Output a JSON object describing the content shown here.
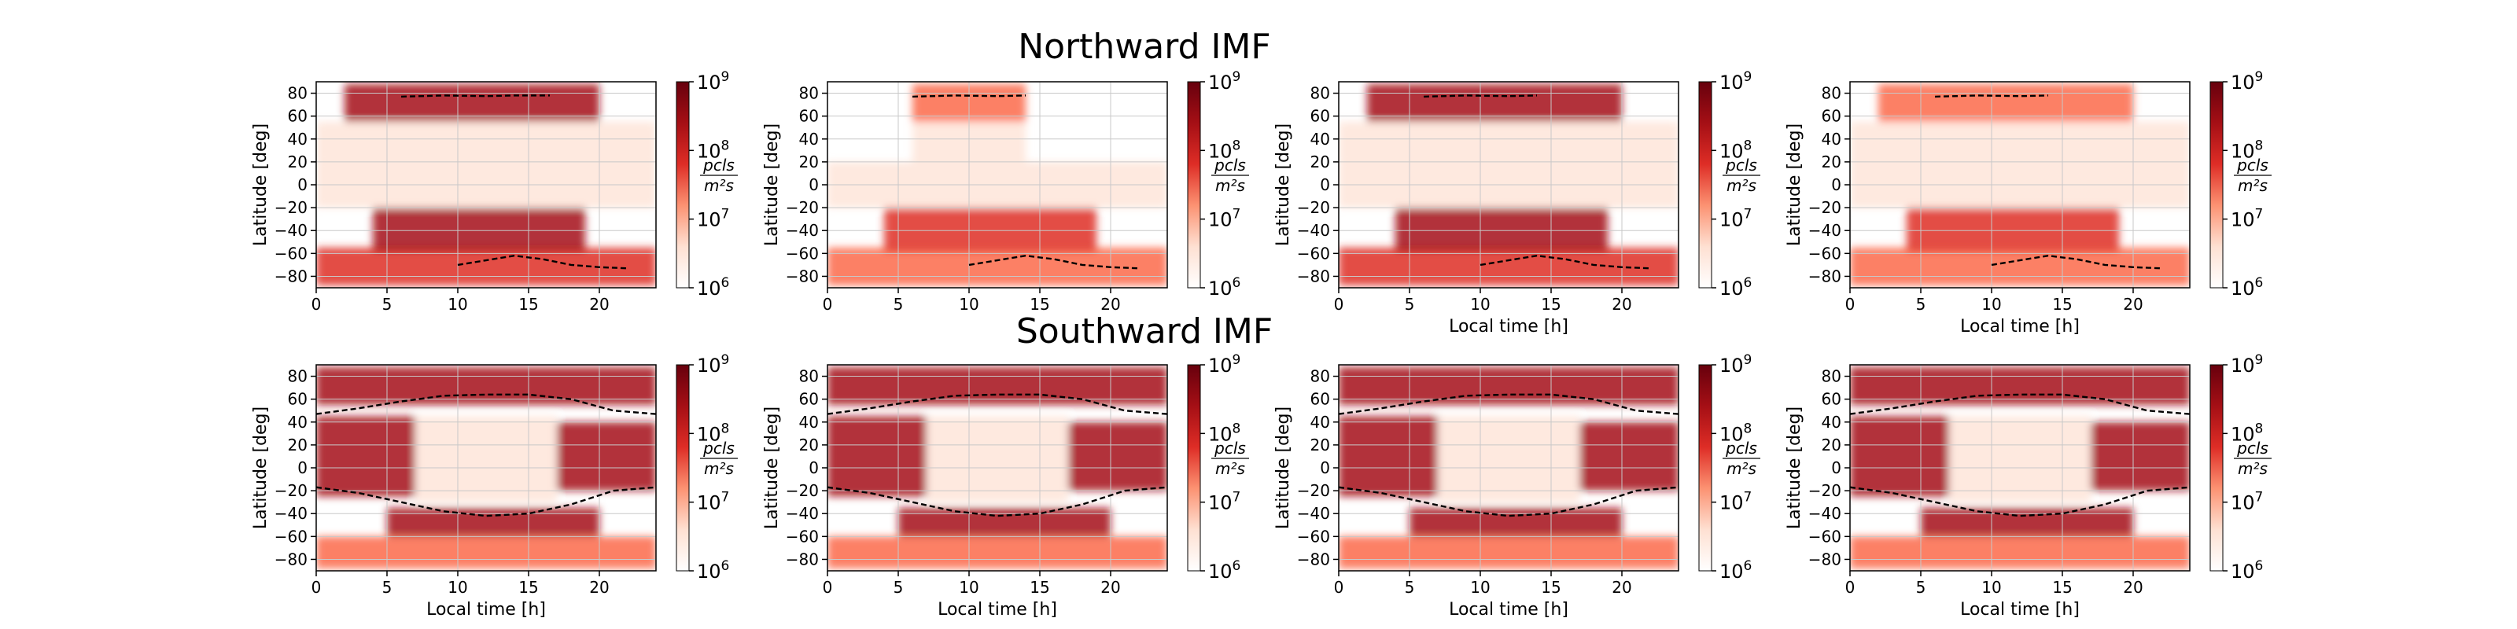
{
  "figure": {
    "rows": [
      {
        "title": "Northward IMF"
      },
      {
        "title": "Southward IMF"
      }
    ],
    "colorbar": {
      "label_numerator": "pcls",
      "label_denominator": "m²s",
      "ticks": [
        {
          "base": "10",
          "exp": "9"
        },
        {
          "base": "10",
          "exp": "8"
        },
        {
          "base": "10",
          "exp": "7"
        },
        {
          "base": "10",
          "exp": "6"
        }
      ],
      "colors": [
        "#ffffff",
        "#fee0d2",
        "#fc9272",
        "#de2d26",
        "#a50f15",
        "#67000d"
      ]
    },
    "accent_color": "#e03a2f"
  },
  "chart_data": [
    {
      "type": "heatmap",
      "row": "Northward IMF",
      "panel": 1,
      "xlabel": "",
      "ylabel": "Latitude [deg]",
      "xlim": [
        0,
        24
      ],
      "ylim": [
        -90,
        90
      ],
      "xticks": [
        "0",
        "5",
        "10",
        "15",
        "20"
      ],
      "yticks": [
        "80",
        "60",
        "40",
        "20",
        "0",
        "-20",
        "-40",
        "-60",
        "-80"
      ],
      "colorscale": "log",
      "clim": [
        1000000.0,
        1000000000.0
      ],
      "grid": true,
      "boundary_lines": [
        {
          "x": [
            6,
            9,
            12,
            14,
            16.5
          ],
          "y": [
            77,
            78,
            77.5,
            78,
            78
          ]
        },
        {
          "x": [
            10,
            12,
            14,
            16,
            18,
            20,
            22
          ],
          "y": [
            -70,
            -66,
            -62,
            -65,
            -70,
            -72,
            -73
          ]
        }
      ]
    },
    {
      "type": "heatmap",
      "row": "Northward IMF",
      "panel": 2,
      "xlabel": "",
      "ylabel": "Latitude [deg]",
      "xlim": [
        0,
        24
      ],
      "ylim": [
        -90,
        90
      ],
      "xticks": [
        "0",
        "5",
        "10",
        "15",
        "20"
      ],
      "yticks": [
        "80",
        "60",
        "40",
        "20",
        "0",
        "-20",
        "-40",
        "-60",
        "-80"
      ],
      "colorscale": "log",
      "clim": [
        1000000.0,
        1000000000.0
      ],
      "grid": true,
      "boundary_lines": [
        {
          "x": [
            6,
            9,
            12,
            14
          ],
          "y": [
            77,
            78,
            77.5,
            78
          ]
        },
        {
          "x": [
            10,
            12,
            14,
            16,
            18,
            20,
            22
          ],
          "y": [
            -70,
            -66,
            -62,
            -65,
            -70,
            -72,
            -73
          ]
        }
      ]
    },
    {
      "type": "heatmap",
      "row": "Northward IMF",
      "panel": 3,
      "xlabel": "Local time [h]",
      "ylabel": "Latitude [deg]",
      "xlim": [
        0,
        24
      ],
      "ylim": [
        -90,
        90
      ],
      "xticks": [
        "0",
        "5",
        "10",
        "15",
        "20"
      ],
      "yticks": [
        "80",
        "60",
        "40",
        "20",
        "0",
        "-20",
        "-40",
        "-60",
        "-80"
      ],
      "colorscale": "log",
      "clim": [
        1000000.0,
        1000000000.0
      ],
      "grid": true,
      "boundary_lines": [
        {
          "x": [
            6,
            9,
            12,
            14
          ],
          "y": [
            77,
            78,
            77.5,
            78
          ]
        },
        {
          "x": [
            10,
            12,
            14,
            16,
            18,
            20,
            22
          ],
          "y": [
            -70,
            -66,
            -62,
            -65,
            -70,
            -72,
            -73
          ]
        }
      ]
    },
    {
      "type": "heatmap",
      "row": "Northward IMF",
      "panel": 4,
      "xlabel": "Local time [h]",
      "ylabel": "Latitude [deg]",
      "xlim": [
        0,
        24
      ],
      "ylim": [
        -90,
        90
      ],
      "xticks": [
        "0",
        "5",
        "10",
        "15",
        "20"
      ],
      "yticks": [
        "80",
        "60",
        "40",
        "20",
        "0",
        "-20",
        "-40",
        "-60",
        "-80"
      ],
      "colorscale": "log",
      "clim": [
        1000000.0,
        1000000000.0
      ],
      "grid": true,
      "boundary_lines": [
        {
          "x": [
            6,
            9,
            12,
            14
          ],
          "y": [
            77,
            78,
            77.5,
            78
          ]
        },
        {
          "x": [
            10,
            12,
            14,
            16,
            18,
            20,
            22
          ],
          "y": [
            -70,
            -66,
            -62,
            -65,
            -70,
            -72,
            -73
          ]
        }
      ]
    },
    {
      "type": "heatmap",
      "row": "Southward IMF",
      "panel": 1,
      "xlabel": "Local time [h]",
      "ylabel": "Latitude [deg]",
      "xlim": [
        0,
        24
      ],
      "ylim": [
        -90,
        90
      ],
      "xticks": [
        "0",
        "5",
        "10",
        "15",
        "20"
      ],
      "yticks": [
        "80",
        "60",
        "40",
        "20",
        "0",
        "-20",
        "-40",
        "-60",
        "-80"
      ],
      "colorscale": "log",
      "clim": [
        1000000.0,
        1000000000.0
      ],
      "grid": true,
      "boundary_lines": [
        {
          "x": [
            0,
            3,
            6,
            9,
            12,
            15,
            18,
            21,
            24
          ],
          "y": [
            47,
            52,
            58,
            63,
            64,
            64,
            60,
            50,
            47
          ]
        },
        {
          "x": [
            0,
            3,
            6,
            9,
            12,
            15,
            18,
            21,
            24
          ],
          "y": [
            -17,
            -22,
            -30,
            -38,
            -42,
            -40,
            -32,
            -20,
            -17
          ]
        }
      ]
    },
    {
      "type": "heatmap",
      "row": "Southward IMF",
      "panel": 2,
      "xlabel": "Local time [h]",
      "ylabel": "Latitude [deg]",
      "xlim": [
        0,
        24
      ],
      "ylim": [
        -90,
        90
      ],
      "xticks": [
        "0",
        "5",
        "10",
        "15",
        "20"
      ],
      "yticks": [
        "80",
        "60",
        "40",
        "20",
        "0",
        "-20",
        "-40",
        "-60",
        "-80"
      ],
      "colorscale": "log",
      "clim": [
        1000000.0,
        1000000000.0
      ],
      "grid": true,
      "boundary_lines": [
        {
          "x": [
            0,
            3,
            6,
            9,
            12,
            15,
            18,
            21,
            24
          ],
          "y": [
            47,
            52,
            58,
            63,
            64,
            64,
            60,
            50,
            47
          ]
        },
        {
          "x": [
            0,
            3,
            6,
            9,
            12,
            15,
            18,
            21,
            24
          ],
          "y": [
            -17,
            -22,
            -30,
            -38,
            -42,
            -40,
            -32,
            -20,
            -17
          ]
        }
      ]
    },
    {
      "type": "heatmap",
      "row": "Southward IMF",
      "panel": 3,
      "xlabel": "Local time [h]",
      "ylabel": "Latitude [deg]",
      "xlim": [
        0,
        24
      ],
      "ylim": [
        -90,
        90
      ],
      "xticks": [
        "0",
        "5",
        "10",
        "15",
        "20"
      ],
      "yticks": [
        "80",
        "60",
        "40",
        "20",
        "0",
        "-20",
        "-40",
        "-60",
        "-80"
      ],
      "colorscale": "log",
      "clim": [
        1000000.0,
        1000000000.0
      ],
      "grid": true,
      "boundary_lines": [
        {
          "x": [
            0,
            3,
            6,
            9,
            12,
            15,
            18,
            21,
            24
          ],
          "y": [
            47,
            52,
            58,
            63,
            64,
            64,
            60,
            50,
            47
          ]
        },
        {
          "x": [
            0,
            3,
            6,
            9,
            12,
            15,
            18,
            21,
            24
          ],
          "y": [
            -17,
            -22,
            -30,
            -38,
            -42,
            -40,
            -32,
            -20,
            -17
          ]
        }
      ]
    },
    {
      "type": "heatmap",
      "row": "Southward IMF",
      "panel": 4,
      "xlabel": "Local time [h]",
      "ylabel": "Latitude [deg]",
      "xlim": [
        0,
        24
      ],
      "ylim": [
        -90,
        90
      ],
      "xticks": [
        "0",
        "5",
        "10",
        "15",
        "20"
      ],
      "yticks": [
        "80",
        "60",
        "40",
        "20",
        "0",
        "-20",
        "-40",
        "-60",
        "-80"
      ],
      "colorscale": "log",
      "clim": [
        1000000.0,
        1000000000.0
      ],
      "grid": true,
      "boundary_lines": [
        {
          "x": [
            0,
            3,
            6,
            9,
            12,
            15,
            18,
            21,
            24
          ],
          "y": [
            47,
            52,
            58,
            63,
            64,
            64,
            60,
            50,
            47
          ]
        },
        {
          "x": [
            0,
            3,
            6,
            9,
            12,
            15,
            18,
            21,
            24
          ],
          "y": [
            -17,
            -22,
            -30,
            -38,
            -42,
            -40,
            -32,
            -20,
            -17
          ]
        }
      ]
    }
  ]
}
